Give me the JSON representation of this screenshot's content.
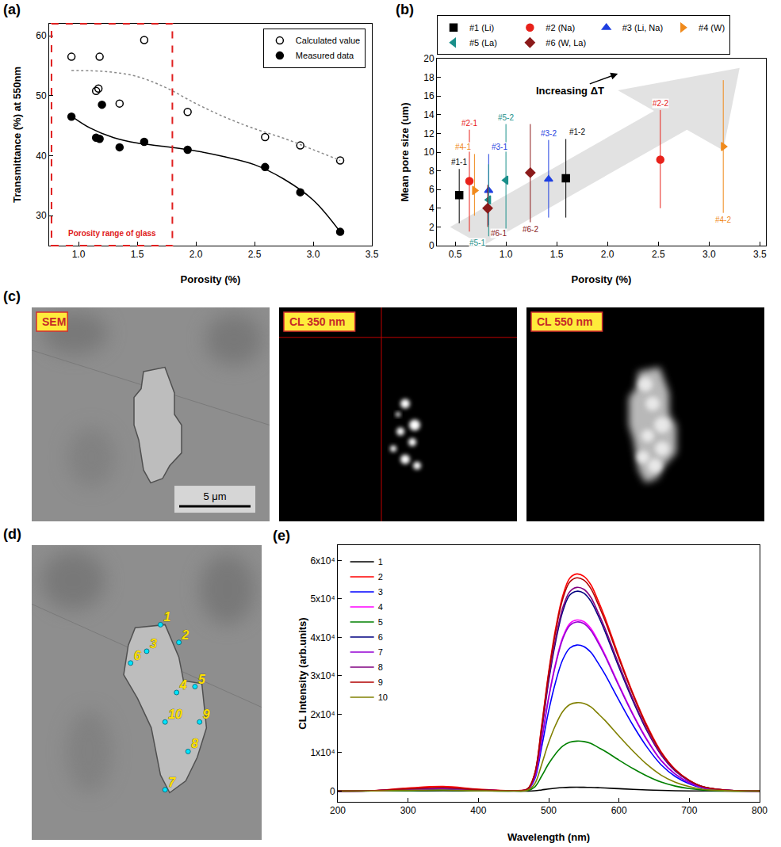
{
  "chart_data": [
    {
      "panel_label": "(a)",
      "type": "scatter",
      "x_label": "Porosity (%)",
      "y_label": "Transmittance (%) at 550nm",
      "xlim": [
        0.75,
        3.5
      ],
      "xticks": [
        {
          "value": 1,
          "label": "1.0"
        },
        1.5,
        {
          "value": 2,
          "label": "2.0"
        },
        2.5,
        {
          "value": 3,
          "label": "3.0"
        },
        3.5
      ],
      "ylim": [
        25,
        62
      ],
      "yticks": [
        30,
        40,
        50,
        60
      ],
      "grid": false,
      "legend": "top right",
      "series": [
        {
          "name": "Calculated value",
          "color": "#000000",
          "marker": "circle-open",
          "x": [
            0.94,
            1.15,
            1.17,
            1.18,
            1.35,
            1.56,
            1.93,
            2.59,
            2.89,
            3.23
          ],
          "values": [
            56.5,
            50.8,
            51.2,
            56.5,
            48.7,
            59.3,
            47.3,
            43.1,
            41.7,
            39.2
          ]
        },
        {
          "name": "Measured data",
          "color": "#000000",
          "marker": "circle",
          "x": [
            0.94,
            1.15,
            1.18,
            1.2,
            1.35,
            1.56,
            1.93,
            2.59,
            2.89,
            3.23
          ],
          "values": [
            46.5,
            43.0,
            42.8,
            48.5,
            41.4,
            42.3,
            41.0,
            38.1,
            33.9,
            27.3
          ]
        },
        {
          "type": "line",
          "line_style": "dotted",
          "color": "#888888",
          "x": [
            0.94,
            1.25,
            1.5,
            1.75,
            2.0,
            2.25,
            2.5,
            2.75,
            3.0,
            3.23
          ],
          "values": [
            54.2,
            54.0,
            53.2,
            51.3,
            48.7,
            46.4,
            44.5,
            42.9,
            41.0,
            39.2
          ]
        },
        {
          "type": "line",
          "line_style": "solid",
          "color": "#000000",
          "x": [
            0.94,
            1.1,
            1.3,
            1.5,
            1.75,
            2.0,
            2.25,
            2.5,
            2.75,
            3.0,
            3.23
          ],
          "values": [
            46.6,
            44.6,
            43.0,
            42.1,
            41.5,
            40.8,
            39.8,
            38.5,
            36.1,
            32.6,
            27.3
          ]
        }
      ],
      "region": {
        "x": [
          0.77,
          1.8
        ],
        "label": "Porosity range of glass",
        "color": "#e02020",
        "line_style": "dashed"
      }
    },
    {
      "panel_label": "(b)",
      "type": "scatter",
      "x_label": "Porosity (%)",
      "y_label": "Mean pore size (um)",
      "xlim": [
        0.32,
        3.56
      ],
      "xticks": [
        0.5,
        {
          "value": 1,
          "label": "1.0"
        },
        1.5,
        {
          "value": 2,
          "label": "2.0"
        },
        2.5,
        {
          "value": 3,
          "label": "3.0"
        },
        3.5
      ],
      "ylim": [
        0,
        20
      ],
      "yticks": [
        0,
        2,
        4,
        6,
        8,
        10,
        12,
        14,
        16,
        18,
        20
      ],
      "grid": false,
      "legend": "top",
      "series": [
        {
          "name": "#1 (Li)",
          "color": "#000000",
          "marker": "square",
          "x": [
            0.54,
            1.59
          ],
          "values": [
            5.4,
            7.2
          ],
          "error_minus": [
            3.0,
            4.2
          ],
          "error_plus": [
            2.8,
            4.2
          ],
          "point_labels": [
            "#1-1",
            "#1-2"
          ]
        },
        {
          "name": "#2 (Na)",
          "color": "#e8211a",
          "marker": "circle",
          "x": [
            0.64,
            2.52
          ],
          "values": [
            6.9,
            9.2
          ],
          "error_minus": [
            5.4,
            5.2
          ],
          "error_plus": [
            5.5,
            5.3
          ],
          "point_labels": [
            "#2-1",
            "#2-2"
          ]
        },
        {
          "name": "#3 (Li, Na)",
          "color": "#1f3fe0",
          "marker": "triangle-up",
          "x": [
            0.83,
            1.42
          ],
          "values": [
            5.9,
            7.1
          ],
          "error_minus": [
            3.7,
            4.1
          ],
          "error_plus": [
            3.9,
            4.2
          ],
          "point_labels": [
            "#3-1",
            "#3-2"
          ]
        },
        {
          "name": "#4 (W)",
          "color": "#f08a1c",
          "marker": "triangle-right",
          "x": [
            0.69,
            3.14
          ],
          "values": [
            5.9,
            10.6
          ],
          "error_minus": [
            2.7,
            7.1
          ],
          "error_plus": [
            3.9,
            7.1
          ],
          "point_labels": [
            "#4-1",
            "#4-2"
          ]
        },
        {
          "name": "#5 (La)",
          "color": "#1a8f8a",
          "marker": "triangle-left",
          "x": [
            0.83,
            1.0
          ],
          "values": [
            4.9,
            7.0
          ],
          "error_minus": [
            3.9,
            5.8
          ],
          "error_plus": [
            3.8,
            6.0
          ],
          "point_labels": [
            "#5-1",
            "#5-2"
          ]
        },
        {
          "name": "#6 (W, La)",
          "color": "#8b1a1a",
          "marker": "diamond",
          "x": [
            0.82,
            1.24
          ],
          "values": [
            4.0,
            7.8
          ],
          "error_minus": [
            2.0,
            5.3
          ],
          "error_plus": [
            2.5,
            5.2
          ],
          "point_labels": [
            "#6-1",
            "#6-2"
          ]
        }
      ],
      "annotations": [
        {
          "text": "Increasing ΔT"
        }
      ]
    },
    {
      "panel_label": "(e)",
      "type": "line",
      "x_label": "Wavelength (nm)",
      "y_label": "CL Intensity (arb.units)",
      "xlim": [
        200,
        800
      ],
      "xticks": [
        200,
        300,
        400,
        500,
        600,
        700,
        800
      ],
      "ylim": [
        -2800,
        64000
      ],
      "yticks": [
        0,
        {
          "value": 10000,
          "label": "1x10⁴"
        },
        {
          "value": 20000,
          "label": "2x10⁴"
        },
        {
          "value": 30000,
          "label": "3x10⁴"
        },
        {
          "value": 40000,
          "label": "4x10⁴"
        },
        {
          "value": 50000,
          "label": "5x10⁴"
        },
        {
          "value": 60000,
          "label": "6x10⁴"
        }
      ],
      "grid": false,
      "legend": "top left",
      "x": [
        200,
        250,
        300,
        350,
        400,
        450,
        470,
        480,
        490,
        500,
        510,
        520,
        530,
        540,
        550,
        560,
        570,
        580,
        600,
        620,
        640,
        660,
        680,
        700,
        720,
        750,
        800
      ],
      "series": [
        {
          "name": "1",
          "color": "#000000",
          "values": [
            0,
            20,
            50,
            80,
            30,
            10,
            10,
            80,
            300,
            550,
            750,
            900,
            980,
            1000,
            990,
            950,
            880,
            800,
            620,
            450,
            300,
            180,
            100,
            50,
            20,
            5,
            0
          ]
        },
        {
          "name": "2",
          "color": "#ff0000",
          "values": [
            0,
            100,
            800,
            1200,
            500,
            100,
            600,
            4500,
            17000,
            31000,
            42400,
            50800,
            55400,
            56500,
            55900,
            53700,
            49700,
            45200,
            35000,
            25400,
            17000,
            10200,
            5650,
            2800,
            1100,
            300,
            0
          ]
        },
        {
          "name": "3",
          "color": "#0000ff",
          "values": [
            0,
            60,
            300,
            500,
            200,
            60,
            380,
            3040,
            11400,
            20900,
            28500,
            34200,
            37200,
            38000,
            37600,
            36100,
            33400,
            30400,
            23600,
            17100,
            11400,
            6840,
            3800,
            1900,
            760,
            190,
            0
          ]
        },
        {
          "name": "4",
          "color": "#ff00ff",
          "values": [
            0,
            80,
            400,
            700,
            300,
            80,
            450,
            3560,
            13400,
            24500,
            33400,
            40000,
            43600,
            44500,
            44100,
            42300,
            39200,
            35600,
            27600,
            20000,
            13400,
            8000,
            4450,
            2200,
            900,
            220,
            0
          ]
        },
        {
          "name": "5",
          "color": "#008000",
          "values": [
            0,
            20,
            100,
            200,
            80,
            20,
            130,
            1040,
            3900,
            7150,
            9750,
            11700,
            12700,
            13000,
            12900,
            12400,
            11400,
            10400,
            8060,
            5850,
            3900,
            2340,
            1300,
            650,
            260,
            65,
            0
          ]
        },
        {
          "name": "6",
          "color": "#000080",
          "values": [
            0,
            100,
            500,
            800,
            300,
            100,
            520,
            4200,
            15600,
            28600,
            39000,
            46800,
            51000,
            52000,
            51500,
            49400,
            45800,
            41600,
            32200,
            23400,
            15600,
            9400,
            5200,
            2600,
            1040,
            260,
            0
          ]
        },
        {
          "name": "7",
          "color": "#9400d3",
          "values": [
            0,
            80,
            400,
            600,
            300,
            80,
            440,
            3520,
            13200,
            24200,
            33000,
            39600,
            43100,
            44000,
            43600,
            41800,
            38700,
            35200,
            27300,
            19800,
            13200,
            7900,
            4400,
            2200,
            880,
            220,
            0
          ]
        },
        {
          "name": "8",
          "color": "#800080",
          "values": [
            0,
            100,
            500,
            800,
            300,
            100,
            530,
            4200,
            15900,
            29200,
            39800,
            47700,
            51900,
            53000,
            52500,
            50400,
            46600,
            42400,
            32900,
            23900,
            15900,
            9500,
            5300,
            2650,
            1060,
            260,
            0
          ]
        },
        {
          "name": "9",
          "color": "#b00000",
          "values": [
            0,
            100,
            600,
            900,
            400,
            100,
            550,
            4400,
            16600,
            30500,
            41600,
            50000,
            54400,
            55500,
            54900,
            52700,
            48800,
            44400,
            34400,
            25000,
            16600,
            10000,
            5550,
            2800,
            1100,
            300,
            0
          ]
        },
        {
          "name": "10",
          "color": "#808000",
          "values": [
            0,
            40,
            200,
            300,
            100,
            40,
            230,
            1840,
            6900,
            12650,
            17250,
            20700,
            22500,
            23000,
            22800,
            21900,
            20200,
            18400,
            14300,
            10400,
            6900,
            4140,
            2300,
            1150,
            460,
            115,
            0
          ]
        }
      ]
    }
  ],
  "images": {
    "c": {
      "panel_label": "(c)",
      "panels": [
        {
          "title": "SEM",
          "scale_bar": "5 μm"
        },
        {
          "title": "CL 350 nm"
        },
        {
          "title": "CL 550 nm"
        }
      ]
    },
    "d": {
      "panel_label": "(d)",
      "point_labels": [
        "1",
        "2",
        "3",
        "4",
        "5",
        "6",
        "7",
        "8",
        "9",
        "10"
      ]
    }
  }
}
